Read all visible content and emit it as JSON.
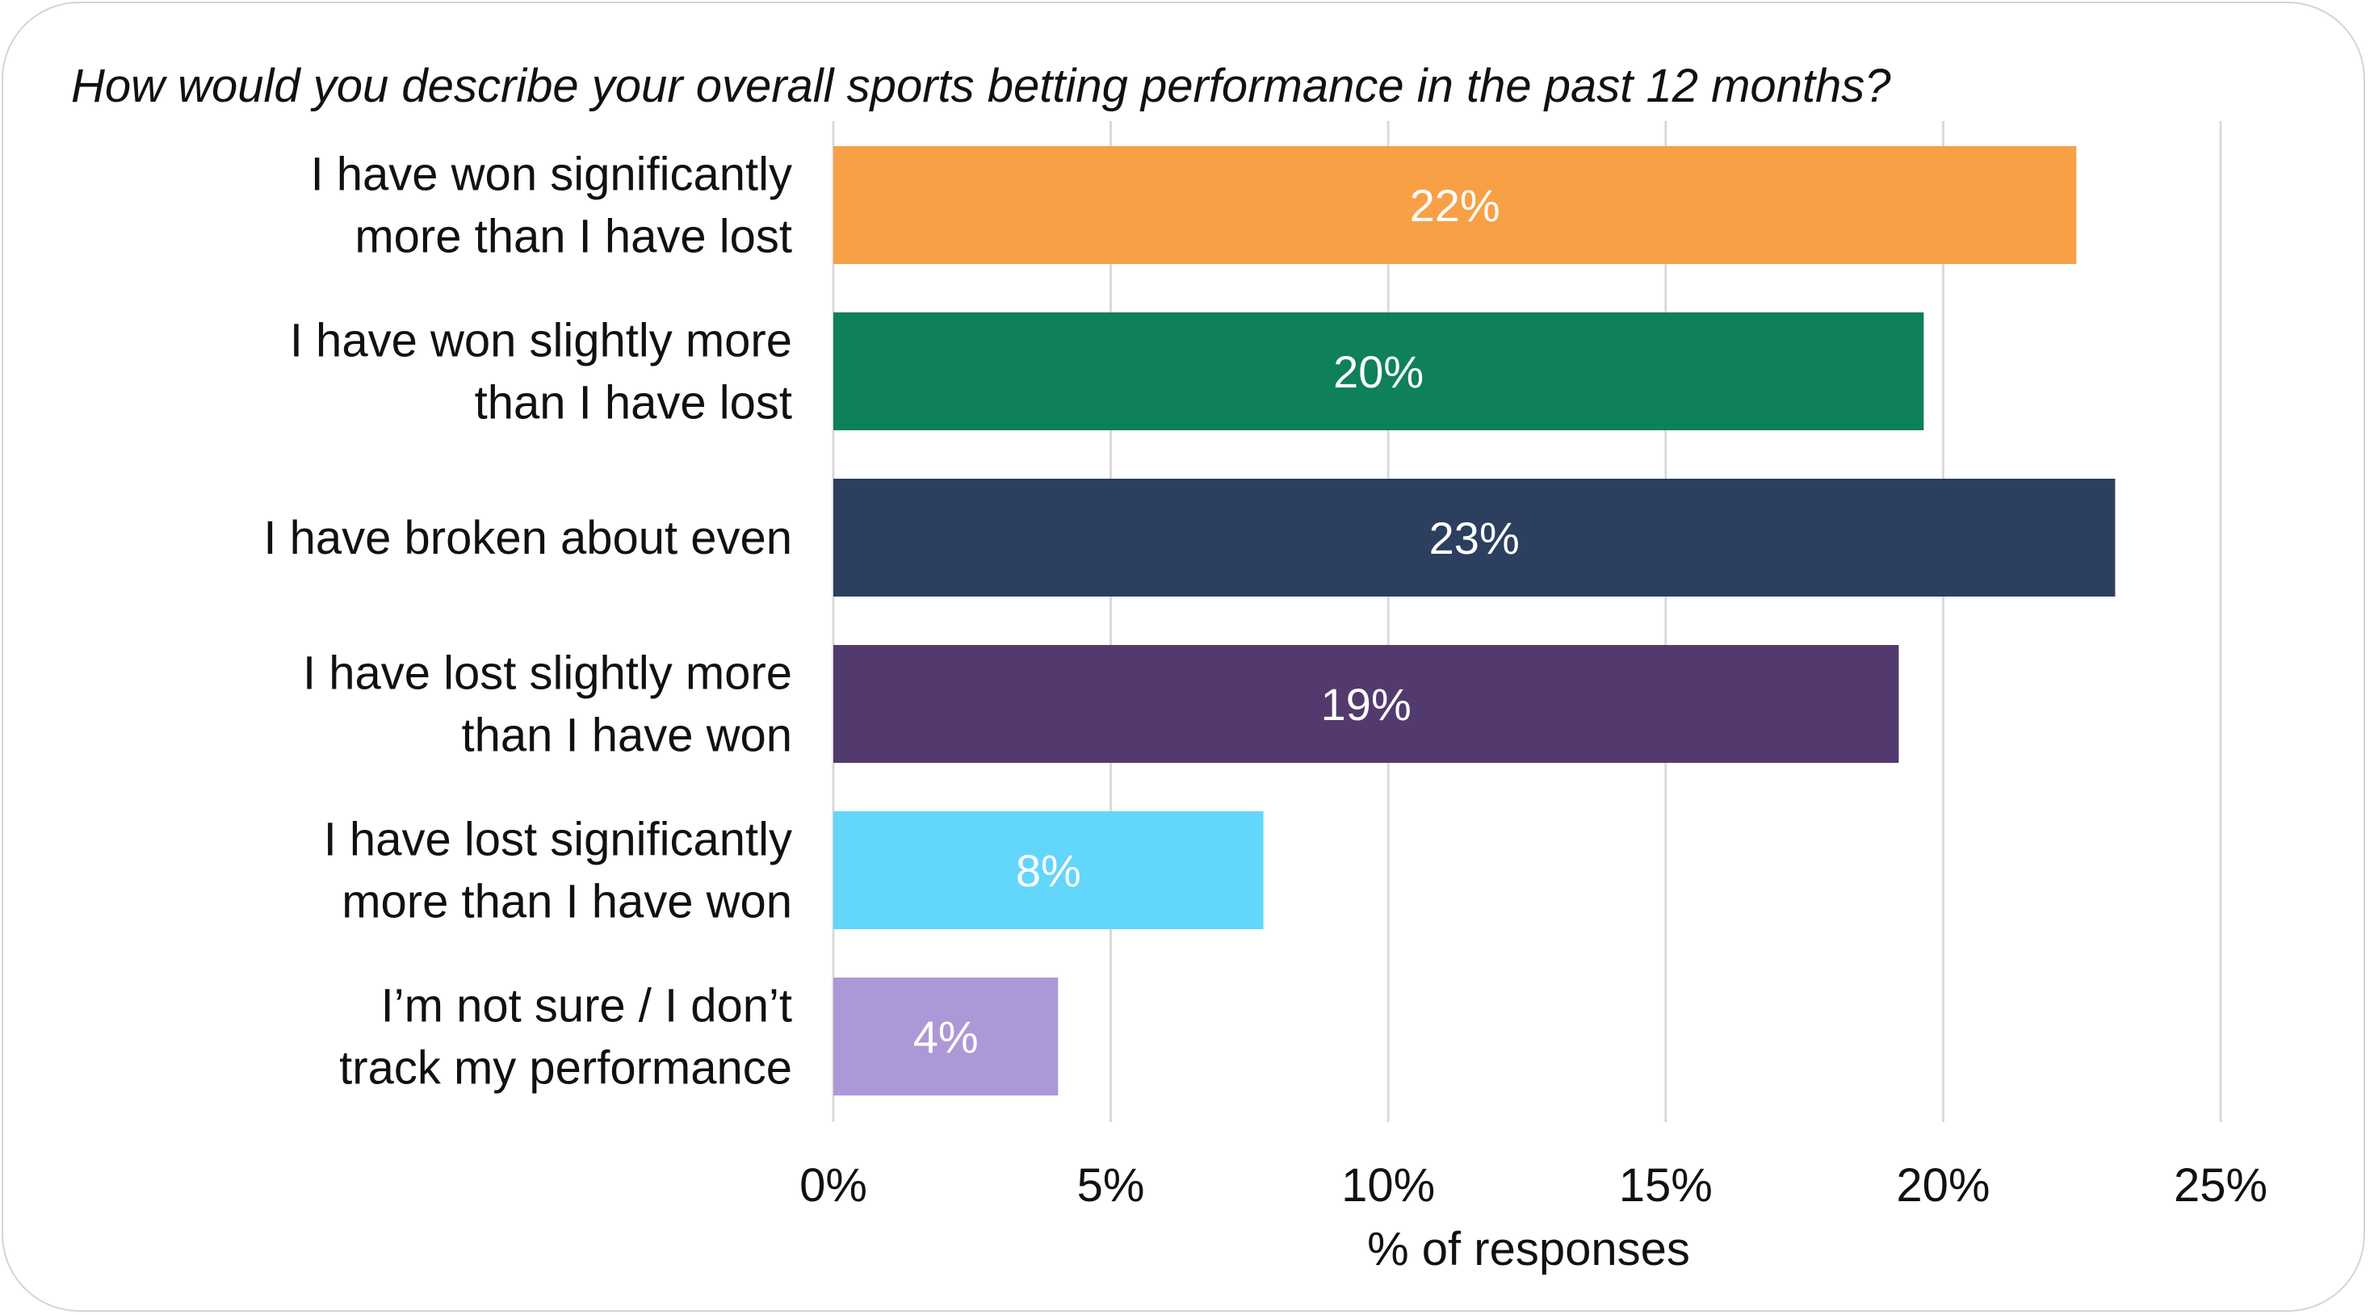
{
  "chart_data": {
    "type": "bar",
    "orientation": "horizontal",
    "title": "How would you describe your overall sports betting performance in the past 12 months?",
    "xlabel": "% of responses",
    "ylabel": "",
    "xlim": [
      0,
      25
    ],
    "x_ticks": [
      0,
      5,
      10,
      15,
      20,
      25
    ],
    "x_tick_labels": [
      "0%",
      "5%",
      "10%",
      "15%",
      "20%",
      "25%"
    ],
    "grid": true,
    "categories": [
      [
        "I have won significantly",
        "more than I have lost"
      ],
      [
        "I have won slightly more",
        "than I have lost"
      ],
      [
        "I have broken about even"
      ],
      [
        "I have lost slightly more",
        "than I have won"
      ],
      [
        "I have lost significantly",
        "more than I have won"
      ],
      [
        "I’m not sure / I don’t",
        "track my performance"
      ]
    ],
    "values": [
      22.4,
      19.65,
      23.1,
      19.2,
      7.75,
      4.05
    ],
    "data_labels": [
      "22%",
      "20%",
      "23%",
      "19%",
      "8%",
      "4%"
    ],
    "colors": [
      "#F8A046",
      "#0E805A",
      "#2C3F5F",
      "#523A6F",
      "#62D6FB",
      "#AC98D6"
    ]
  }
}
